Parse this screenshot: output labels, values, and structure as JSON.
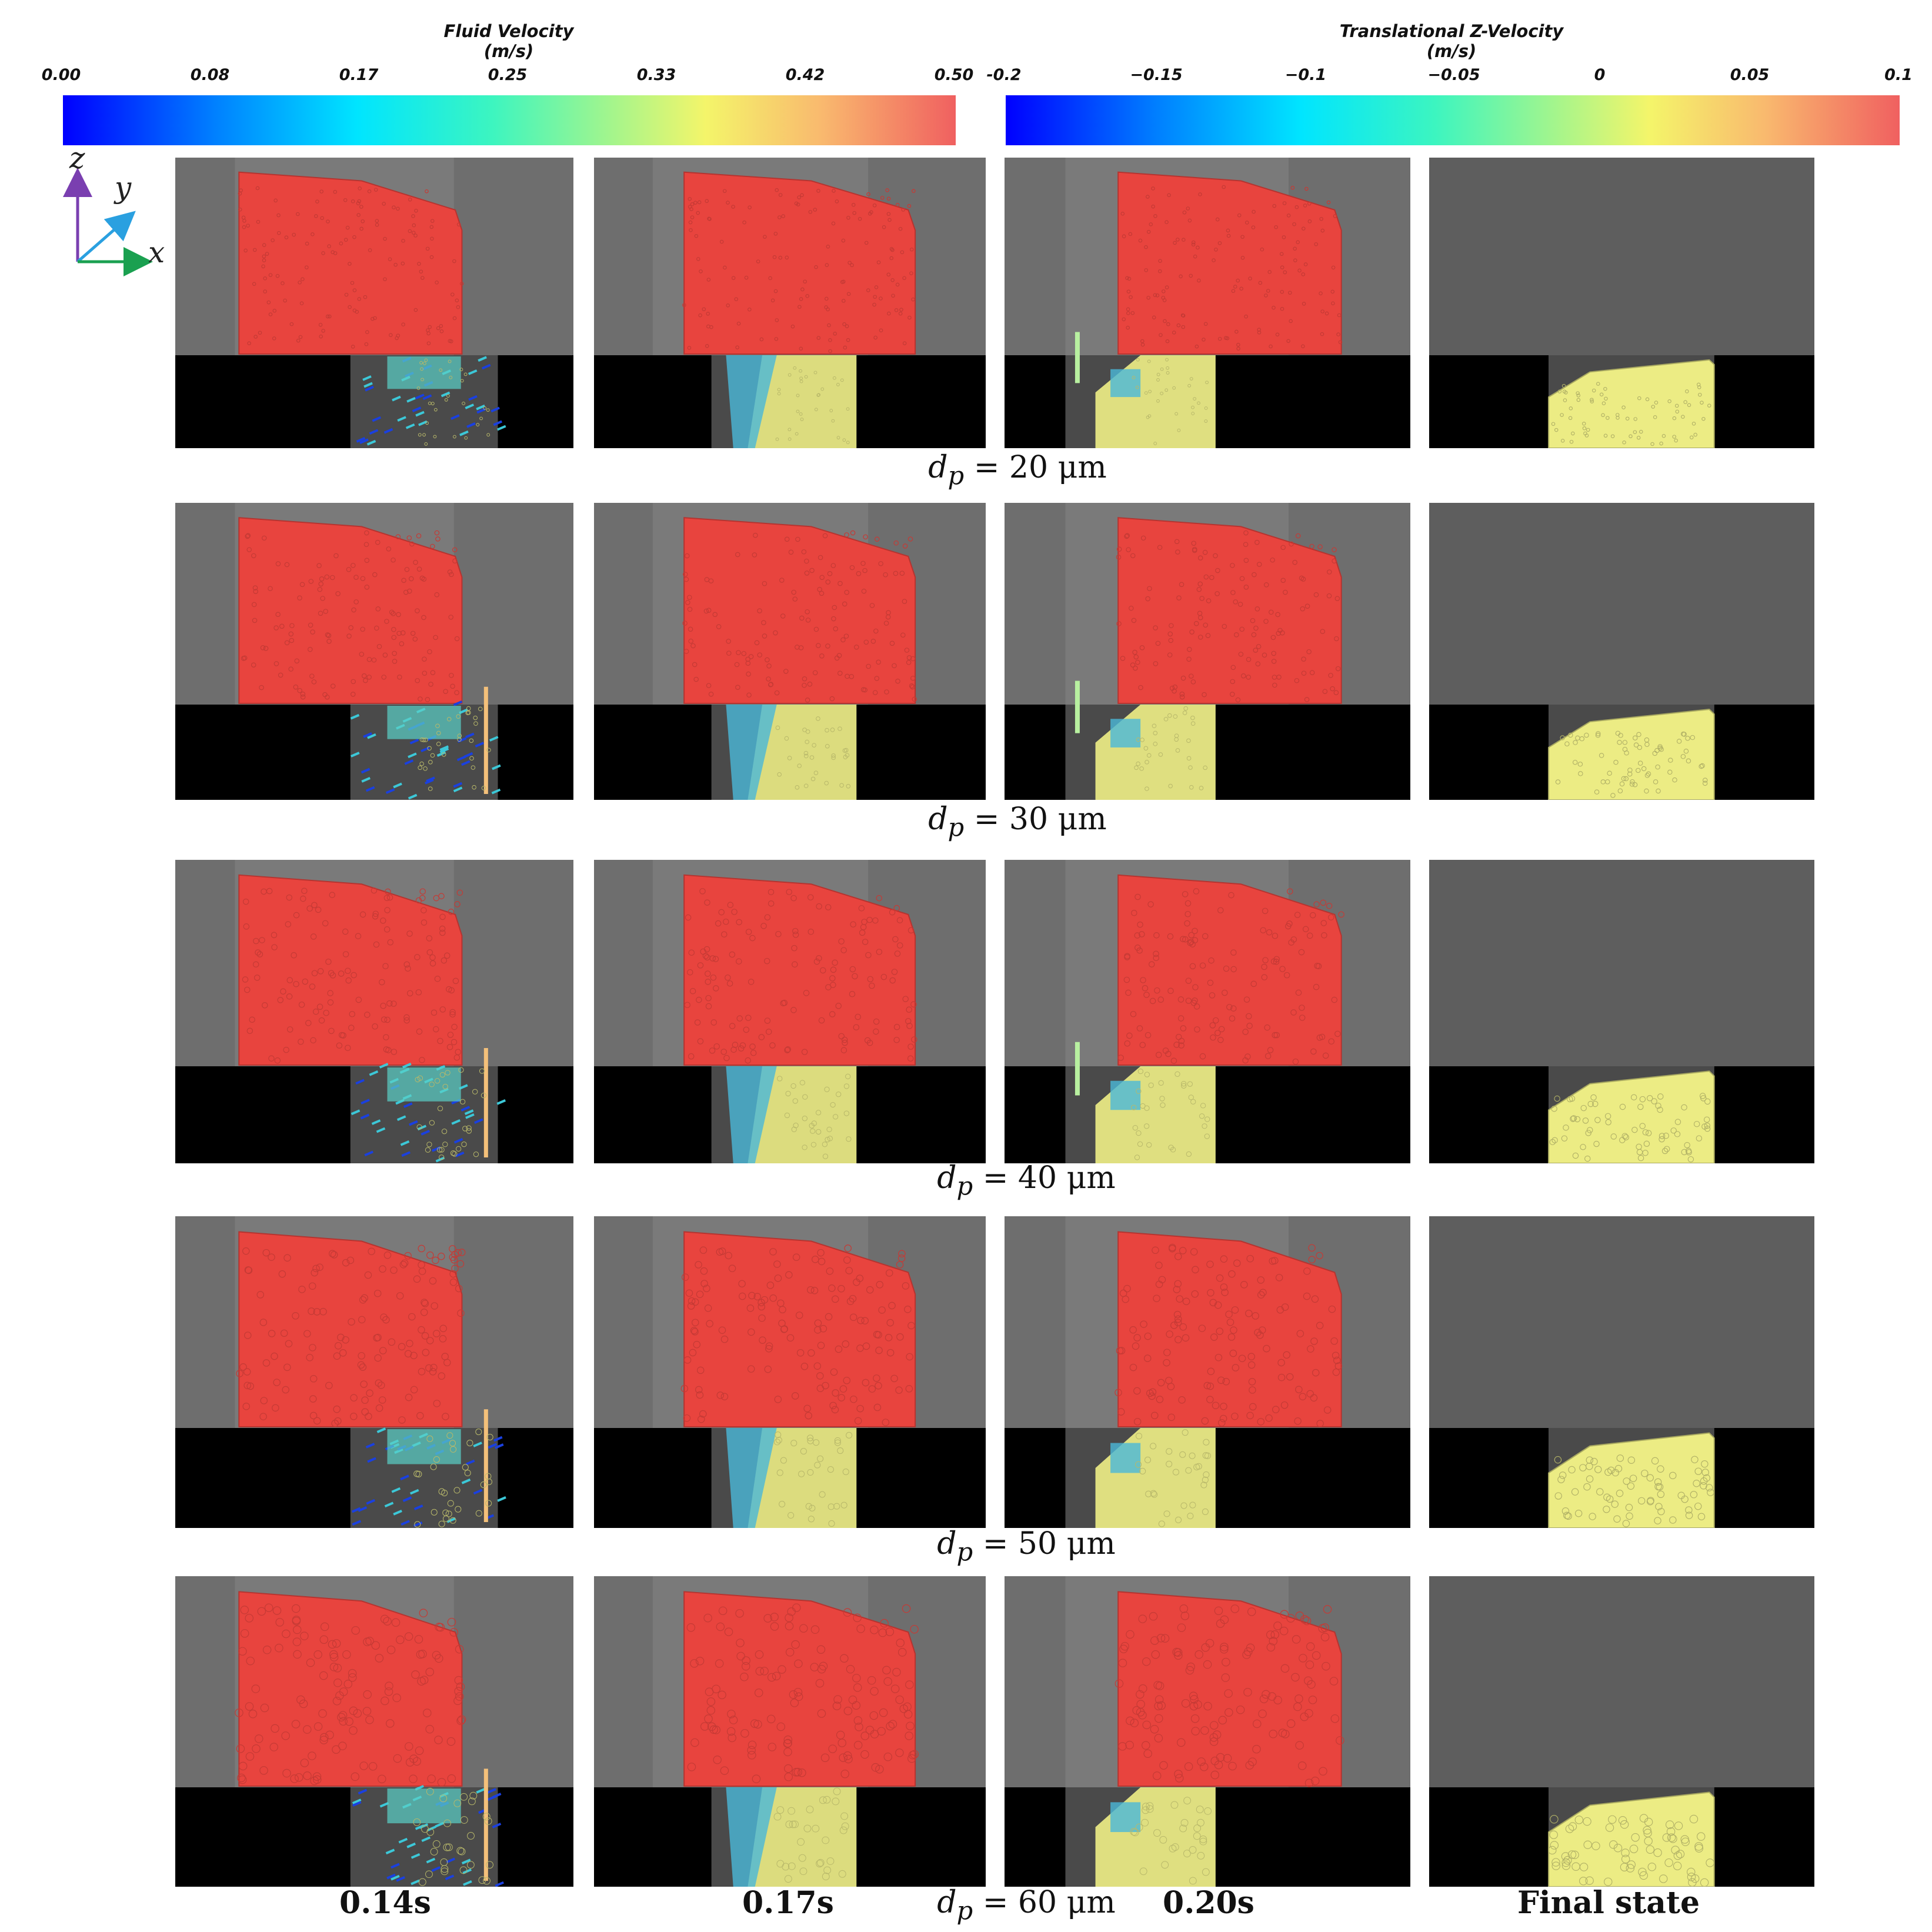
{
  "colorbars": [
    {
      "title_line1": "Fluid Velocity",
      "title_line2": "(m/s)",
      "ticks": [
        "0.00",
        "0.08",
        "0.17",
        "0.25",
        "0.33",
        "0.42",
        "0.50"
      ]
    },
    {
      "title_line1": "Translational Z-Velocity",
      "title_line2": "(m/s)",
      "ticks": [
        "-0.2",
        "−0.15",
        "−0.1",
        "−0.05",
        "0",
        "0.05",
        "0.1"
      ]
    }
  ],
  "axes": {
    "z": "z",
    "y": "y",
    "x": "x"
  },
  "rows": [
    {
      "label_var": "d",
      "label_sub": "p",
      "label_rest": " = 20 μm"
    },
    {
      "label_var": "d",
      "label_sub": "p",
      "label_rest": " = 30 μm"
    },
    {
      "label_var": "d",
      "label_sub": "p",
      "label_rest": " = 40 μm"
    },
    {
      "label_var": "d",
      "label_sub": "p",
      "label_rest": " = 50 μm"
    },
    {
      "label_var": "d",
      "label_sub": "p",
      "label_rest": " = 60 μm"
    }
  ],
  "time_labels": [
    "0.14s",
    "0.17s",
    "0.20s",
    "Final state"
  ],
  "colors": {
    "powder_red": "#e8443e",
    "powder_yellow": "#ecec84",
    "background_gray": "#6b6b6b",
    "base_black": "#000000"
  }
}
